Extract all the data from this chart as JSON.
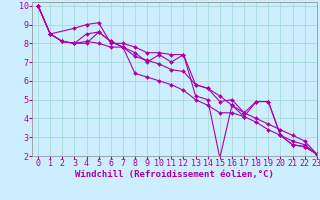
{
  "xlabel": "Windchill (Refroidissement éolien,°C)",
  "bg_color": "#cceeff",
  "grid_color": "#aadddd",
  "line_color": "#aa00aa",
  "xlim": [
    -0.5,
    23
  ],
  "ylim": [
    2,
    10.2
  ],
  "xticks": [
    0,
    1,
    2,
    3,
    4,
    5,
    6,
    7,
    8,
    9,
    10,
    11,
    12,
    13,
    14,
    15,
    16,
    17,
    18,
    19,
    20,
    21,
    22,
    23
  ],
  "yticks": [
    2,
    3,
    4,
    5,
    6,
    7,
    8,
    9,
    10
  ],
  "series": [
    [
      [
        0,
        10.0
      ],
      [
        1,
        8.5
      ],
      [
        3,
        8.8
      ],
      [
        4,
        9.0
      ],
      [
        5,
        9.1
      ],
      [
        6,
        8.0
      ],
      [
        7,
        8.0
      ],
      [
        8,
        7.8
      ],
      [
        9,
        7.5
      ],
      [
        10,
        7.5
      ],
      [
        11,
        7.4
      ],
      [
        12,
        7.4
      ],
      [
        13,
        5.2
      ],
      [
        14,
        5.0
      ],
      [
        15,
        1.9
      ],
      [
        16,
        4.7
      ],
      [
        17,
        4.1
      ],
      [
        18,
        4.9
      ],
      [
        19,
        4.9
      ],
      [
        20,
        3.1
      ],
      [
        21,
        2.6
      ],
      [
        22,
        2.5
      ],
      [
        23,
        2.1
      ]
    ],
    [
      [
        0,
        10.0
      ],
      [
        1,
        8.5
      ],
      [
        2,
        8.1
      ],
      [
        3,
        8.0
      ],
      [
        4,
        8.1
      ],
      [
        5,
        8.0
      ],
      [
        6,
        7.8
      ],
      [
        7,
        7.8
      ],
      [
        8,
        6.4
      ],
      [
        9,
        6.2
      ],
      [
        10,
        6.0
      ],
      [
        11,
        5.8
      ],
      [
        12,
        5.5
      ],
      [
        13,
        5.0
      ],
      [
        14,
        4.7
      ],
      [
        15,
        4.3
      ],
      [
        16,
        4.3
      ],
      [
        17,
        4.1
      ],
      [
        18,
        3.8
      ],
      [
        19,
        3.4
      ],
      [
        20,
        3.1
      ],
      [
        21,
        2.8
      ],
      [
        22,
        2.6
      ],
      [
        23,
        2.1
      ]
    ],
    [
      [
        0,
        10.0
      ],
      [
        1,
        8.5
      ],
      [
        2,
        8.1
      ],
      [
        3,
        8.0
      ],
      [
        4,
        8.5
      ],
      [
        5,
        8.6
      ],
      [
        6,
        8.1
      ],
      [
        7,
        7.8
      ],
      [
        8,
        7.3
      ],
      [
        9,
        7.1
      ],
      [
        10,
        6.9
      ],
      [
        11,
        6.6
      ],
      [
        12,
        6.5
      ],
      [
        13,
        5.8
      ],
      [
        14,
        5.6
      ],
      [
        15,
        5.2
      ],
      [
        16,
        4.7
      ],
      [
        17,
        4.3
      ],
      [
        18,
        4.0
      ],
      [
        19,
        3.7
      ],
      [
        20,
        3.4
      ],
      [
        21,
        3.1
      ],
      [
        22,
        2.8
      ],
      [
        23,
        2.1
      ]
    ],
    [
      [
        0,
        10.0
      ],
      [
        1,
        8.5
      ],
      [
        2,
        8.1
      ],
      [
        3,
        8.0
      ],
      [
        4,
        8.0
      ],
      [
        5,
        8.6
      ],
      [
        6,
        8.1
      ],
      [
        7,
        7.8
      ],
      [
        8,
        7.5
      ],
      [
        9,
        7.0
      ],
      [
        10,
        7.4
      ],
      [
        11,
        7.0
      ],
      [
        12,
        7.4
      ],
      [
        13,
        5.8
      ],
      [
        14,
        5.6
      ],
      [
        15,
        4.9
      ],
      [
        16,
        5.0
      ],
      [
        17,
        4.3
      ],
      [
        18,
        4.9
      ],
      [
        19,
        4.9
      ],
      [
        20,
        3.1
      ],
      [
        21,
        2.6
      ],
      [
        22,
        2.5
      ],
      [
        23,
        2.1
      ]
    ]
  ],
  "tick_fontsize": 6,
  "xlabel_fontsize": 6.5
}
